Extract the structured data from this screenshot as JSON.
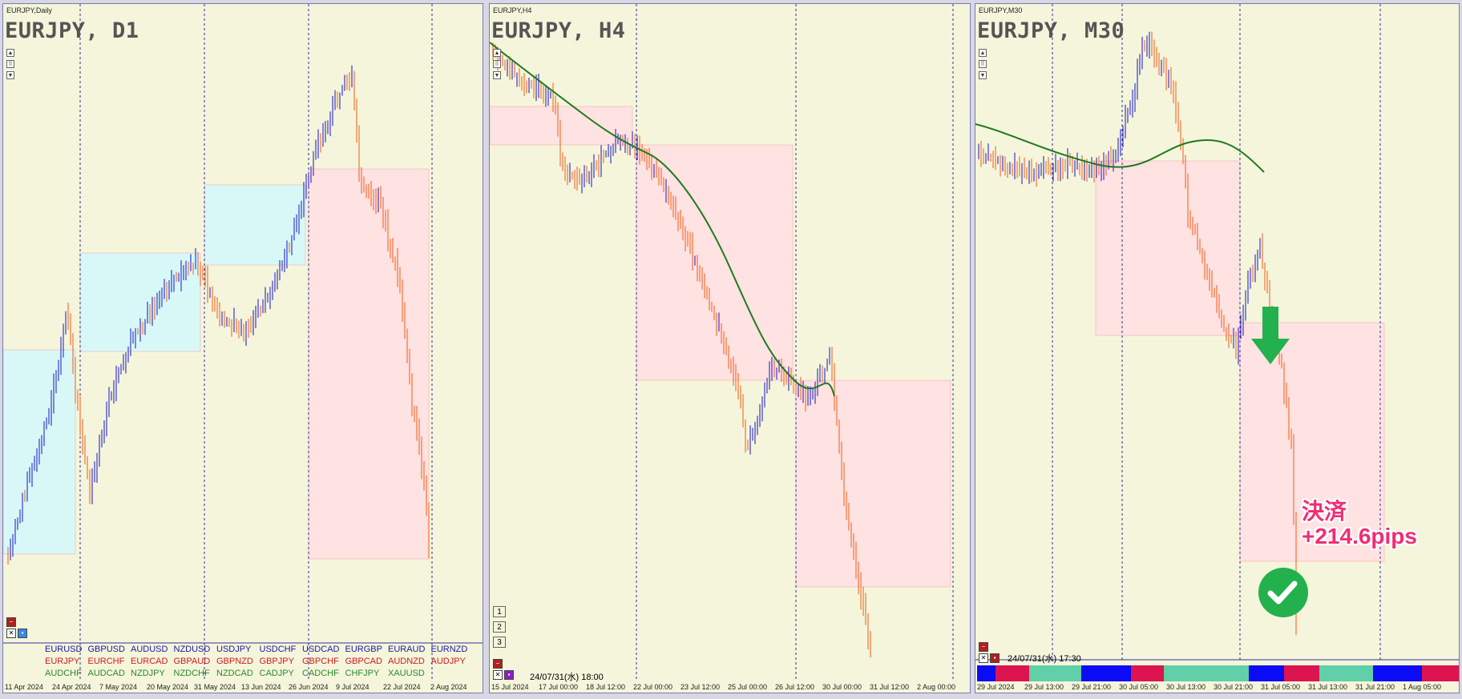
{
  "charts": [
    {
      "id": "d1",
      "small_title": "EURJPY,Daily",
      "big_title": "EURJPY, D1",
      "xlabels": [
        "11 Apr 2024",
        "24 Apr 2024",
        "7 May 2024",
        "20 May 2024",
        "31 May 2024",
        "13 Jun 2024",
        "26 Jun 2024",
        "9 Jul 2024",
        "22 Jul 2024",
        "2 Aug 2024"
      ]
    },
    {
      "id": "h4",
      "small_title": "EURJPY,H4",
      "big_title": "EURJPY, H4",
      "timestamp": "24/07/31(水) 18:00",
      "xlabels": [
        "15 Jul 2024",
        "17 Jul 00:00",
        "18 Jul 12:00",
        "22 Jul 00:00",
        "23 Jul 12:00",
        "25 Jul 00:00",
        "26 Jul 12:00",
        "30 Jul 00:00",
        "31 Jul 12:00",
        "2 Aug 00:00"
      ],
      "buttons": [
        "1",
        "2",
        "3"
      ]
    },
    {
      "id": "m30",
      "small_title": "EURJPY,M30",
      "big_title": "EURJPY, M30",
      "timestamp": "24/07/31(水) 17:30",
      "xlabels": [
        "29 Jul 2024",
        "29 Jul 13:00",
        "29 Jul 21:00",
        "30 Jul 05:00",
        "30 Jul 13:00",
        "30 Jul 21:00",
        "31 Jul 05:00",
        "31 Jul 13:00",
        "31 Jul 21:00",
        "1 Aug 05:00"
      ],
      "profit_line1": "決済",
      "profit_line2": "+214.6pips"
    }
  ],
  "pairs": {
    "row1": [
      "EURUSD",
      "GBPUSD",
      "AUDUSD",
      "NZDUSD",
      "USDJPY",
      "USDCHF",
      "USDCAD",
      "EURGBP",
      "EURAUD",
      "EURNZD"
    ],
    "row2": [
      "EURJPY",
      "EURCHF",
      "EURCAD",
      "GBPAUD",
      "GBPNZD",
      "GBPJPY",
      "GBPCHF",
      "GBPCAD",
      "AUDNZD",
      "AUDJPY"
    ],
    "row3": [
      "AUDCHF",
      "AUDCAD",
      "NZDJPY",
      "NZDCHF",
      "NZDCAD",
      "CADJPY",
      "CADCHF",
      "CHFJPY",
      "XAUUSD"
    ]
  },
  "colors": {
    "bull": "#1414c8",
    "bear": "#f05a14",
    "ma": "#1e7a1e",
    "bg": "#f5f5dc",
    "pink": "#ffe2e2",
    "cyan": "#d8f8f8",
    "row1": "#1a1aa0",
    "row2": "#d01a1a",
    "row3": "#2a8a2a",
    "arrow": "#22b14c",
    "profit": "#ef2d74"
  }
}
